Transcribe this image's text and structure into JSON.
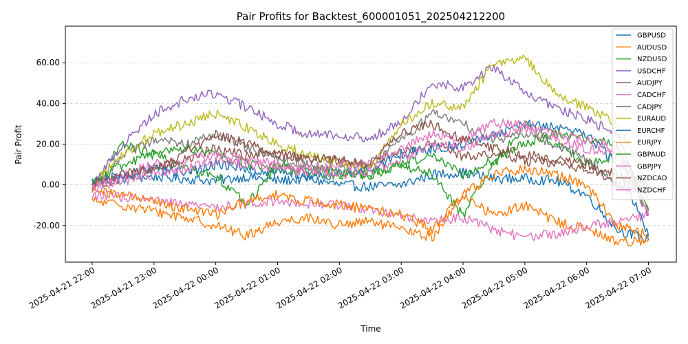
{
  "chart_data": {
    "type": "line",
    "title": "Pair Profits for Backtest_600001051_202504212200",
    "xlabel": "Time",
    "ylabel": "Pair Profit",
    "xlim": [
      "2025-04-21 21:34",
      "2025-04-22 07:27"
    ],
    "ylim": [
      -38,
      78
    ],
    "xticks": [
      "2025-04-21 22:00",
      "2025-04-21 23:00",
      "2025-04-22 00:00",
      "2025-04-22 01:00",
      "2025-04-22 02:00",
      "2025-04-22 03:00",
      "2025-04-22 04:00",
      "2025-04-22 05:00",
      "2025-04-22 06:00",
      "2025-04-22 07:00"
    ],
    "yticks": [
      "-20.00",
      "0.00",
      "20.00",
      "40.00",
      "60.00"
    ],
    "grid": "y-dashed",
    "legend_position": "top-right",
    "x": [
      "2025-04-21 22:00",
      "2025-04-21 22:30",
      "2025-04-21 23:00",
      "2025-04-21 23:30",
      "2025-04-22 00:00",
      "2025-04-22 00:30",
      "2025-04-22 01:00",
      "2025-04-22 01:30",
      "2025-04-22 02:00",
      "2025-04-22 02:30",
      "2025-04-22 03:00",
      "2025-04-22 03:30",
      "2025-04-22 04:00",
      "2025-04-22 04:30",
      "2025-04-22 05:00",
      "2025-04-22 05:30",
      "2025-04-22 06:00",
      "2025-04-22 06:30",
      "2025-04-22 07:00"
    ],
    "series": [
      {
        "name": "GBPUSD",
        "color": "#1f77b4",
        "values": [
          2,
          3,
          4,
          3,
          2,
          4,
          2,
          3,
          0,
          -1,
          0,
          5,
          6,
          3,
          3,
          2,
          -5,
          -22,
          -27
        ]
      },
      {
        "name": "AUDUSD",
        "color": "#ff7f0e",
        "values": [
          -8,
          -10,
          -13,
          -16,
          -20,
          -25,
          -18,
          -16,
          -20,
          -18,
          -22,
          -26,
          -5,
          -15,
          -10,
          -18,
          -22,
          -28,
          -27
        ]
      },
      {
        "name": "NZDUSD",
        "color": "#2ca02c",
        "values": [
          0,
          20,
          15,
          8,
          5,
          -10,
          10,
          8,
          6,
          5,
          10,
          5,
          -15,
          10,
          30,
          20,
          10,
          15,
          -13
        ]
      },
      {
        "name": "USDCHF",
        "color": "#9467bd",
        "values": [
          0,
          20,
          35,
          42,
          45,
          38,
          30,
          25,
          25,
          22,
          32,
          50,
          48,
          58,
          45,
          38,
          32,
          25,
          -15
        ]
      },
      {
        "name": "AUDJPY",
        "color": "#8c564b",
        "values": [
          -2,
          4,
          8,
          12,
          18,
          14,
          16,
          13,
          12,
          10,
          16,
          20,
          14,
          15,
          12,
          10,
          8,
          5,
          0
        ]
      },
      {
        "name": "CADCHF",
        "color": "#e377c2",
        "values": [
          -5,
          -6,
          -8,
          -10,
          -11,
          -9,
          -8,
          -9,
          -10,
          -12,
          -15,
          -18,
          -16,
          -22,
          -26,
          -24,
          -20,
          -18,
          -15
        ]
      },
      {
        "name": "CADJPY",
        "color": "#7f7f7f",
        "values": [
          -1,
          14,
          22,
          20,
          25,
          18,
          13,
          10,
          8,
          10,
          22,
          35,
          30,
          22,
          25,
          20,
          12,
          0,
          -5
        ]
      },
      {
        "name": "EURAUD",
        "color": "#bcbd22",
        "values": [
          0,
          15,
          25,
          30,
          35,
          28,
          20,
          15,
          10,
          8,
          30,
          40,
          38,
          60,
          62,
          45,
          38,
          30,
          0
        ]
      },
      {
        "name": "EURCHF",
        "color": "#1f77b4",
        "values": [
          1,
          5,
          8,
          6,
          10,
          8,
          6,
          5,
          5,
          8,
          15,
          18,
          20,
          25,
          30,
          28,
          25,
          10,
          -25
        ]
      },
      {
        "name": "EURJPY",
        "color": "#ff7f0e",
        "values": [
          -3,
          -5,
          -8,
          -12,
          -15,
          -8,
          -5,
          -8,
          -10,
          -12,
          -15,
          -22,
          -5,
          5,
          8,
          5,
          0,
          -20,
          -25
        ]
      },
      {
        "name": "GBPAUD",
        "color": "#2ca02c",
        "values": [
          1,
          10,
          15,
          18,
          15,
          10,
          8,
          6,
          5,
          5,
          10,
          15,
          5,
          12,
          20,
          25,
          22,
          20,
          -12
        ]
      },
      {
        "name": "GBPJPY",
        "color": "#e377c2",
        "values": [
          0,
          5,
          10,
          12,
          15,
          12,
          10,
          8,
          10,
          10,
          18,
          25,
          22,
          30,
          30,
          25,
          22,
          18,
          -15
        ]
      },
      {
        "name": "NZDCAD",
        "color": "#8c564b",
        "values": [
          0,
          5,
          8,
          15,
          25,
          20,
          15,
          13,
          12,
          10,
          25,
          30,
          22,
          18,
          15,
          12,
          10,
          0,
          0
        ]
      },
      {
        "name": "NZDCHF",
        "color": "#e377c2",
        "values": [
          -2,
          2,
          5,
          8,
          12,
          10,
          8,
          6,
          5,
          6,
          12,
          20,
          18,
          25,
          28,
          22,
          18,
          15,
          -15
        ]
      }
    ]
  }
}
